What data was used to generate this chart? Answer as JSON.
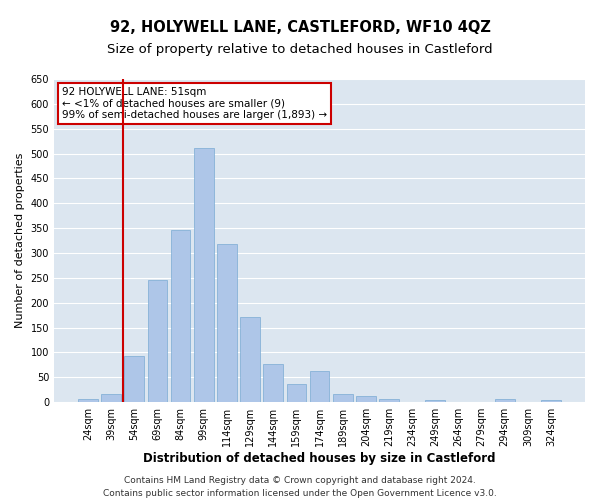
{
  "title": "92, HOLYWELL LANE, CASTLEFORD, WF10 4QZ",
  "subtitle": "Size of property relative to detached houses in Castleford",
  "xlabel": "Distribution of detached houses by size in Castleford",
  "ylabel": "Number of detached properties",
  "footer_line1": "Contains HM Land Registry data © Crown copyright and database right 2024.",
  "footer_line2": "Contains public sector information licensed under the Open Government Licence v3.0.",
  "categories": [
    "24sqm",
    "39sqm",
    "54sqm",
    "69sqm",
    "84sqm",
    "99sqm",
    "114sqm",
    "129sqm",
    "144sqm",
    "159sqm",
    "174sqm",
    "189sqm",
    "204sqm",
    "219sqm",
    "234sqm",
    "249sqm",
    "264sqm",
    "279sqm",
    "294sqm",
    "309sqm",
    "324sqm"
  ],
  "values": [
    7,
    17,
    92,
    245,
    347,
    512,
    319,
    171,
    76,
    37,
    63,
    17,
    13,
    7,
    0,
    5,
    0,
    0,
    7,
    0,
    5
  ],
  "bar_color": "#aec6e8",
  "bar_edge_color": "#7aabd4",
  "vline_color": "#cc0000",
  "annotation_box_text": "92 HOLYWELL LANE: 51sqm\n← <1% of detached houses are smaller (9)\n99% of semi-detached houses are larger (1,893) →",
  "annotation_box_color": "#cc0000",
  "annotation_box_bg": "#ffffff",
  "ylim": [
    0,
    650
  ],
  "yticks": [
    0,
    50,
    100,
    150,
    200,
    250,
    300,
    350,
    400,
    450,
    500,
    550,
    600,
    650
  ],
  "bg_color": "#dce6f0",
  "grid_color": "#ffffff",
  "fig_bg_color": "#ffffff",
  "title_fontsize": 10.5,
  "subtitle_fontsize": 9.5,
  "xlabel_fontsize": 8.5,
  "ylabel_fontsize": 8,
  "tick_fontsize": 7,
  "footer_fontsize": 6.5,
  "annot_fontsize": 7.5
}
